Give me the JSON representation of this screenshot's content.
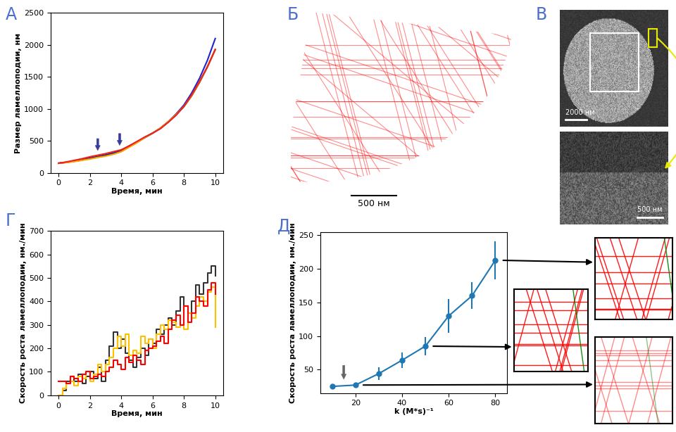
{
  "chart_data": [
    {
      "type": "line",
      "title": "А",
      "xlabel": "Время, мин",
      "ylabel": "Размер ламеллоподии, нм",
      "x": [
        0,
        0.5,
        1,
        1.5,
        2,
        2.5,
        3,
        3.5,
        4,
        4.5,
        5,
        5.5,
        6,
        6.5,
        7,
        7.5,
        8,
        8.5,
        9,
        9.5,
        10
      ],
      "series": [
        {
          "color": "#2222cc",
          "values": [
            150,
            165,
            185,
            205,
            230,
            255,
            280,
            310,
            350,
            420,
            480,
            550,
            620,
            700,
            800,
            920,
            1060,
            1250,
            1480,
            1760,
            2100
          ]
        },
        {
          "color": "#222222",
          "values": [
            150,
            162,
            180,
            200,
            222,
            245,
            268,
            295,
            335,
            405,
            475,
            550,
            620,
            695,
            795,
            905,
            1035,
            1205,
            1415,
            1655,
            1925
          ]
        },
        {
          "color": "#ffa500",
          "values": [
            150,
            160,
            175,
            195,
            215,
            240,
            260,
            290,
            330,
            400,
            470,
            550,
            620,
            700,
            800,
            910,
            1040,
            1210,
            1420,
            1660,
            1930
          ]
        },
        {
          "color": "#ee2020",
          "values": [
            150,
            170,
            195,
            220,
            250,
            275,
            300,
            330,
            360,
            420,
            490,
            560,
            620,
            690,
            790,
            900,
            1040,
            1220,
            1430,
            1660,
            1930
          ]
        }
      ],
      "annotations": [
        {
          "x": 2.5,
          "y": 320
        },
        {
          "x": 3.9,
          "y": 400
        }
      ],
      "xlim": [
        -0.5,
        10.5
      ],
      "ylim": [
        0,
        2500
      ],
      "xticks": [
        0,
        2,
        4,
        6,
        8,
        10
      ],
      "yticks": [
        0,
        500,
        1000,
        1500,
        2000,
        2500
      ]
    },
    {
      "type": "line",
      "title": "Г",
      "line_style": "steps",
      "xlabel": "Время, мин",
      "ylabel": "Скорость роста ламеллоподии, нм./мин",
      "x": [
        0,
        0.25,
        0.5,
        0.75,
        1,
        1.25,
        1.5,
        1.75,
        2,
        2.25,
        2.5,
        2.75,
        3,
        3.25,
        3.5,
        3.75,
        4,
        4.25,
        4.5,
        4.75,
        5,
        5.25,
        5.5,
        5.75,
        6,
        6.25,
        6.5,
        6.75,
        7,
        7.25,
        7.5,
        7.75,
        8,
        8.25,
        8.5,
        8.75,
        9,
        9.25,
        9.5,
        9.75,
        10
      ],
      "series": [
        {
          "color": "#333333",
          "values": [
            0,
            20,
            60,
            80,
            60,
            90,
            50,
            80,
            100,
            70,
            120,
            60,
            150,
            210,
            270,
            200,
            240,
            180,
            150,
            120,
            160,
            200,
            170,
            240,
            220,
            280,
            260,
            300,
            330,
            300,
            360,
            420,
            380,
            350,
            400,
            470,
            430,
            480,
            520,
            550,
            510
          ]
        },
        {
          "color": "#ffc000",
          "values": [
            0,
            30,
            50,
            60,
            40,
            80,
            70,
            100,
            60,
            90,
            130,
            100,
            130,
            160,
            200,
            250,
            210,
            260,
            170,
            190,
            180,
            250,
            220,
            240,
            200,
            260,
            300,
            280,
            320,
            310,
            290,
            300,
            280,
            350,
            330,
            380,
            420,
            400,
            440,
            460,
            290
          ]
        },
        {
          "color": "#ff0000",
          "values": [
            60,
            60,
            50,
            80,
            70,
            60,
            90,
            100,
            70,
            80,
            90,
            80,
            100,
            120,
            150,
            130,
            110,
            160,
            140,
            170,
            150,
            130,
            190,
            200,
            210,
            230,
            250,
            220,
            280,
            320,
            340,
            300,
            380,
            310,
            350,
            420,
            400,
            380,
            450,
            480,
            430
          ]
        }
      ],
      "xlim": [
        -0.5,
        10.5
      ],
      "ylim": [
        0,
        700
      ],
      "xticks": [
        0,
        2,
        4,
        6,
        8,
        10
      ],
      "yticks": [
        0,
        100,
        200,
        300,
        400,
        500,
        600,
        700
      ]
    },
    {
      "type": "line",
      "title": "Д",
      "marker": "o",
      "color": "#1f77b4",
      "xlabel": "k (M*s)⁻¹",
      "ylabel": "Скорость роста ламеллоподии, нм./мин",
      "x": [
        10,
        20,
        30,
        40,
        50,
        60,
        70,
        80
      ],
      "values": [
        25,
        27,
        44,
        64,
        85,
        130,
        160,
        213
      ],
      "errors": [
        0,
        2,
        9,
        12,
        14,
        25,
        20,
        28
      ],
      "annotations": [
        {
          "x": 15,
          "y": 33
        }
      ],
      "xlim": [
        5,
        85
      ],
      "ylim": [
        15,
        255
      ],
      "xticks": [
        20,
        40,
        60,
        80
      ],
      "yticks": [
        50,
        100,
        150,
        200,
        250
      ]
    }
  ],
  "diagrams": {
    "Б": {
      "title": "Б",
      "scale_bar": "500 нм"
    },
    "В": {
      "title": "В",
      "scale_bars": [
        "2000 нм",
        "500 нм"
      ]
    }
  }
}
